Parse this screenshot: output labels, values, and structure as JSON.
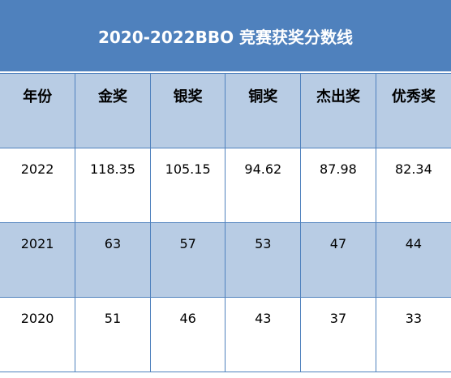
{
  "header": {
    "title": "2020-2022BBO 竞赛获奖分数线"
  },
  "table": {
    "columns": [
      "年份",
      "金奖",
      "银奖",
      "铜奖",
      "杰出奖",
      "优秀奖"
    ],
    "rows": [
      [
        "2022",
        "118.35",
        "105.15",
        "94.62",
        "87.98",
        "82.34"
      ],
      [
        "2021",
        "63",
        "57",
        "53",
        "47",
        "44"
      ],
      [
        "2020",
        "51",
        "46",
        "43",
        "37",
        "33"
      ]
    ]
  }
}
